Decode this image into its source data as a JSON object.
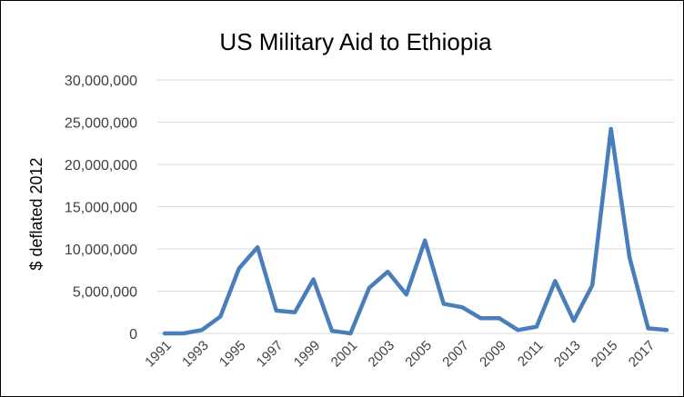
{
  "chart_data": {
    "type": "line",
    "title": "US Military Aid to Ethiopia",
    "xlabel": "",
    "ylabel": "$ deflated 2012",
    "ylim": [
      0,
      30000000
    ],
    "yticks": [
      "0",
      "5,000,000",
      "10,000,000",
      "15,000,000",
      "20,000,000",
      "25,000,000",
      "30,000,000"
    ],
    "xticks": [
      "1991",
      "1993",
      "1995",
      "1997",
      "1999",
      "2001",
      "2003",
      "2005",
      "2007",
      "2009",
      "2011",
      "2013",
      "2015",
      "2017"
    ],
    "x": [
      1991,
      1992,
      1993,
      1994,
      1995,
      1996,
      1997,
      1998,
      1999,
      2000,
      2001,
      2002,
      2003,
      2004,
      2005,
      2006,
      2007,
      2008,
      2009,
      2010,
      2011,
      2012,
      2013,
      2014,
      2015,
      2016,
      2017,
      2018
    ],
    "series": [
      {
        "values": [
          0,
          0,
          400000,
          2000000,
          7700000,
          10200000,
          2700000,
          2500000,
          6400000,
          300000,
          0,
          5400000,
          7300000,
          4600000,
          11000000,
          3500000,
          3100000,
          1800000,
          1800000,
          400000,
          800000,
          6200000,
          1500000,
          5700000,
          24200000,
          9000000,
          600000,
          400000
        ],
        "color": "#4a7ebb"
      }
    ],
    "grid": true,
    "legend": "none"
  }
}
